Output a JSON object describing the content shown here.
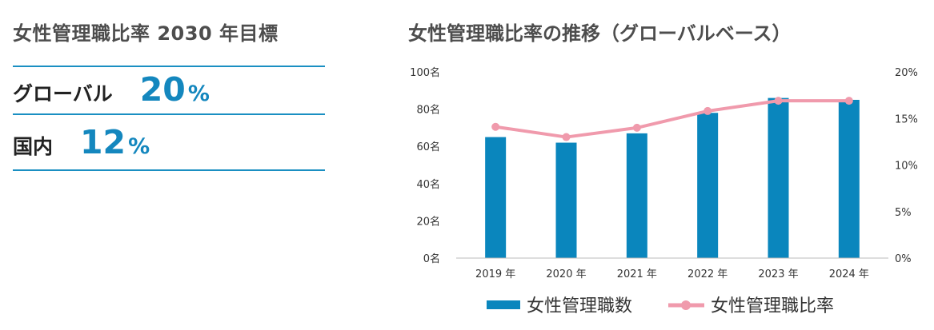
{
  "left_panel": {
    "title": "女性管理職比率 2030 年目標",
    "targets": [
      {
        "label": "グローバル",
        "value": "20",
        "unit": "%"
      },
      {
        "label": "国内",
        "value": "12",
        "unit": "%"
      }
    ]
  },
  "colors": {
    "bar": "#0a86bd",
    "line": "#f09aac",
    "accent": "#1487be",
    "rule": "#1a8fc2"
  },
  "chart_data": {
    "type": "bar",
    "title": "女性管理職比率の推移（グローバルベース）",
    "categories": [
      "2019 年",
      "2020 年",
      "2021 年",
      "2022 年",
      "2023 年",
      "2024 年"
    ],
    "series": [
      {
        "name": "女性管理職数",
        "type": "bar",
        "axis": "left",
        "values": [
          65,
          62,
          67,
          78,
          86,
          85
        ]
      },
      {
        "name": "女性管理職比率",
        "type": "line",
        "axis": "right",
        "values": [
          14.1,
          13.0,
          14.0,
          15.8,
          16.9,
          16.9
        ]
      }
    ],
    "y_left": {
      "range": [
        0,
        100
      ],
      "ticks": [
        0,
        20,
        40,
        60,
        80,
        100
      ],
      "tick_labels": [
        "0名",
        "20名",
        "40名",
        "60名",
        "80名",
        "100名"
      ]
    },
    "y_right": {
      "range": [
        0,
        20
      ],
      "ticks": [
        0,
        5,
        10,
        15,
        20
      ],
      "tick_labels": [
        "0%",
        "5%",
        "10%",
        "15%",
        "20%"
      ]
    },
    "grid": false,
    "legend": "bottom"
  }
}
